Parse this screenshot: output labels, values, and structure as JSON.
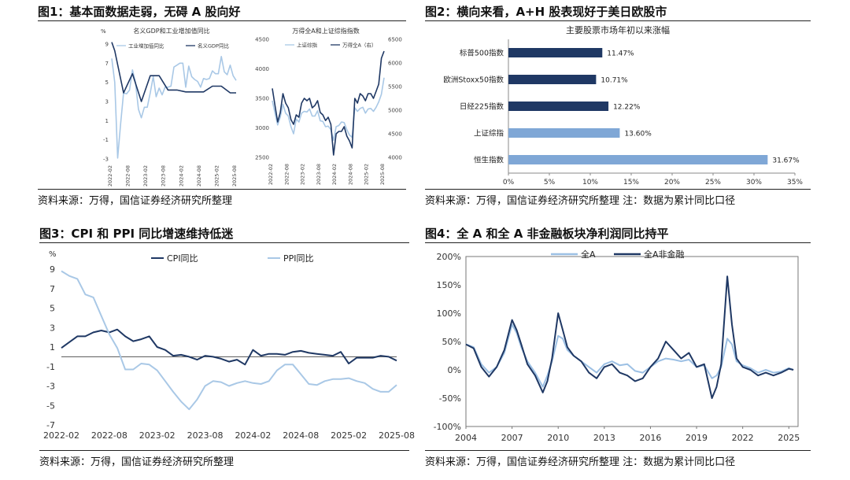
{
  "figures": [
    {
      "title": "图1：基本面数据走弱，无碍 A 股向好",
      "source": "资料来源：万得，国信证券经济研究所整理"
    },
    {
      "title": "图2：横向来看，A+H 股表现好于美日欧股市",
      "source": "资料来源：万得，国信证券经济研究所整理  注：数据为累计同比口径"
    },
    {
      "title": "图3：CPI 和 PPI 同比增速维持低迷",
      "source": "资料来源：万得，国信证券经济研究所整理"
    },
    {
      "title": "图4：全 A 和全 A 非金融板块净利润同比持平",
      "source": "资料来源：万得，国信证券经济研究所整理  注：数据为累计同比口径"
    }
  ],
  "chart_data": [
    {
      "id": "fig1a",
      "type": "line",
      "title": "名义GDP和工业增加值同比",
      "ylabel": "%",
      "ylim": [
        -3,
        9
      ],
      "yticks": [
        -3,
        -1,
        1,
        3,
        5,
        7,
        9
      ],
      "xlim": [
        "2022-02",
        "2025-08"
      ],
      "xticks": [
        "2022-02",
        "2022-08",
        "2023-02",
        "2023-08",
        "2024-02",
        "2024-08",
        "2025-02",
        "2025-08"
      ],
      "series": [
        {
          "name": "工业增加值同比",
          "color": "#a9c8e6",
          "x": [
            "2022-02",
            "2022-03",
            "2022-04",
            "2022-05",
            "2022-06",
            "2022-07",
            "2022-08",
            "2022-09",
            "2022-10",
            "2022-11",
            "2022-12",
            "2023-01",
            "2023-02",
            "2023-03",
            "2023-04",
            "2023-05",
            "2023-06",
            "2023-07",
            "2023-08",
            "2023-09",
            "2023-10",
            "2023-11",
            "2023-12",
            "2024-01",
            "2024-02",
            "2024-03",
            "2024-04",
            "2024-05",
            "2024-06",
            "2024-07",
            "2024-08",
            "2024-09",
            "2024-10",
            "2024-11",
            "2024-12",
            "2025-01",
            "2025-02",
            "2025-03",
            "2025-04",
            "2025-05",
            "2025-06",
            "2025-07",
            "2025-08"
          ],
          "values": [
            7.5,
            5.0,
            -2.9,
            0.7,
            3.9,
            3.8,
            4.2,
            6.3,
            5.0,
            2.2,
            1.3,
            2.4,
            2.4,
            3.9,
            5.6,
            3.5,
            4.4,
            3.7,
            4.5,
            4.5,
            4.6,
            6.6,
            6.8,
            7.0,
            7.0,
            4.5,
            6.7,
            5.6,
            5.3,
            5.1,
            4.5,
            5.4,
            5.3,
            5.4,
            6.2,
            5.9,
            5.9,
            7.7,
            6.1,
            5.8,
            6.8,
            5.7,
            5.2
          ]
        },
        {
          "name": "名义GDP同比",
          "color": "#1f3864",
          "x": [
            "2022-02",
            "2022-03",
            "2022-06",
            "2022-09",
            "2022-12",
            "2023-03",
            "2023-06",
            "2023-09",
            "2023-12",
            "2024-03",
            "2024-06",
            "2024-09",
            "2024-12",
            "2025-03",
            "2025-06",
            "2025-08"
          ],
          "values": [
            9.2,
            8.3,
            3.9,
            5.9,
            3.0,
            5.7,
            5.7,
            4.2,
            4.2,
            4.0,
            4.0,
            4.0,
            4.6,
            4.6,
            3.9,
            3.9
          ]
        }
      ]
    },
    {
      "id": "fig1b",
      "type": "line",
      "title": "万得全A和上证综指指数",
      "ylim_left": [
        2500,
        4500
      ],
      "yticks_left": [
        2500,
        3000,
        3500,
        4000,
        4500
      ],
      "ylim_right": [
        4000,
        6500
      ],
      "yticks_right": [
        4000,
        4500,
        5000,
        5500,
        6000,
        6500
      ],
      "xlim": [
        "2022-02",
        "2025-08"
      ],
      "xticks": [
        "2022-02",
        "2022-08",
        "2023-02",
        "2023-08",
        "2024-02",
        "2024-08",
        "2025-02",
        "2025-08"
      ],
      "series": [
        {
          "name": "上证综指",
          "color": "#a9c8e6",
          "axis": "left",
          "x": [
            "2022-02",
            "2022-03",
            "2022-04",
            "2022-05",
            "2022-06",
            "2022-07",
            "2022-08",
            "2022-09",
            "2022-10",
            "2022-11",
            "2022-12",
            "2023-01",
            "2023-02",
            "2023-03",
            "2023-04",
            "2023-05",
            "2023-06",
            "2023-07",
            "2023-08",
            "2023-09",
            "2023-10",
            "2023-11",
            "2023-12",
            "2024-01",
            "2024-02",
            "2024-03",
            "2024-04",
            "2024-05",
            "2024-06",
            "2024-07",
            "2024-08",
            "2024-09",
            "2024-10",
            "2024-11",
            "2024-12",
            "2025-01",
            "2025-02",
            "2025-03",
            "2025-04",
            "2025-05",
            "2025-06",
            "2025-07",
            "2025-08"
          ],
          "values": [
            3460,
            3250,
            3050,
            3180,
            3400,
            3250,
            3200,
            3020,
            2900,
            3150,
            3100,
            3250,
            3280,
            3270,
            3320,
            3200,
            3200,
            3290,
            3120,
            3110,
            3020,
            3030,
            2970,
            2790,
            3020,
            3040,
            3100,
            3090,
            2970,
            2880,
            2840,
            3340,
            3280,
            3330,
            3350,
            3250,
            3320,
            3330,
            3280,
            3350,
            3440,
            3570,
            3850
          ]
        },
        {
          "name": "万得全A（右）",
          "color": "#1f3864",
          "axis": "right",
          "x": [
            "2022-02",
            "2022-03",
            "2022-04",
            "2022-05",
            "2022-06",
            "2022-07",
            "2022-08",
            "2022-09",
            "2022-10",
            "2022-11",
            "2022-12",
            "2023-01",
            "2023-02",
            "2023-03",
            "2023-04",
            "2023-05",
            "2023-06",
            "2023-07",
            "2023-08",
            "2023-09",
            "2023-10",
            "2023-11",
            "2023-12",
            "2024-01",
            "2024-02",
            "2024-03",
            "2024-04",
            "2024-05",
            "2024-06",
            "2024-07",
            "2024-08",
            "2024-09",
            "2024-10",
            "2024-11",
            "2024-12",
            "2025-01",
            "2025-02",
            "2025-03",
            "2025-04",
            "2025-05",
            "2025-06",
            "2025-07",
            "2025-08"
          ],
          "values": [
            5460,
            5100,
            4750,
            4950,
            5350,
            5150,
            5050,
            4800,
            4700,
            4900,
            4850,
            5150,
            5250,
            5200,
            5250,
            5050,
            5100,
            5200,
            4950,
            4900,
            4780,
            4850,
            4700,
            4050,
            4500,
            4550,
            4550,
            4650,
            4450,
            4350,
            4200,
            5250,
            5150,
            5350,
            5300,
            5200,
            5350,
            5350,
            5250,
            5400,
            5550,
            6100,
            6250
          ]
        }
      ]
    },
    {
      "id": "fig2",
      "type": "bar",
      "orientation": "horizontal",
      "title": "主要股票市场年初以来涨幅",
      "categories": [
        "标普500指数",
        "欧洲Stoxx50指数",
        "日经225指数",
        "上证综指",
        "恒生指数"
      ],
      "values": [
        11.47,
        10.71,
        12.22,
        13.6,
        31.67
      ],
      "data_labels": [
        "11.47%",
        "10.71%",
        "12.22%",
        "13.60%",
        "31.67%"
      ],
      "colors": [
        "#1f3864",
        "#1f3864",
        "#1f3864",
        "#7fa7d6",
        "#7fa7d6"
      ],
      "xlim": [
        0,
        35
      ],
      "xticks": [
        "0%",
        "5%",
        "10%",
        "15%",
        "20%",
        "25%",
        "30%",
        "35%"
      ]
    },
    {
      "id": "fig3",
      "type": "line",
      "ylabel": "%",
      "ylim": [
        -7,
        9
      ],
      "yticks": [
        -7,
        -5,
        -3,
        -1,
        1,
        3,
        5,
        7,
        9
      ],
      "xlim": [
        "2022-02",
        "2025-08"
      ],
      "xticks": [
        "2022-02",
        "2022-08",
        "2023-02",
        "2023-08",
        "2024-02",
        "2024-08",
        "2025-02",
        "2025-08"
      ],
      "legend": "top-center",
      "series": [
        {
          "name": "CPI同比",
          "color": "#1f3864",
          "x": [
            "2022-02",
            "2022-03",
            "2022-04",
            "2022-05",
            "2022-06",
            "2022-07",
            "2022-08",
            "2022-09",
            "2022-10",
            "2022-11",
            "2022-12",
            "2023-01",
            "2023-02",
            "2023-03",
            "2023-04",
            "2023-05",
            "2023-06",
            "2023-07",
            "2023-08",
            "2023-09",
            "2023-10",
            "2023-11",
            "2023-12",
            "2024-01",
            "2024-02",
            "2024-03",
            "2024-04",
            "2024-05",
            "2024-06",
            "2024-07",
            "2024-08",
            "2024-09",
            "2024-10",
            "2024-11",
            "2024-12",
            "2025-01",
            "2025-02",
            "2025-03",
            "2025-04",
            "2025-05",
            "2025-06",
            "2025-07",
            "2025-08"
          ],
          "values": [
            0.9,
            1.5,
            2.1,
            2.1,
            2.5,
            2.7,
            2.5,
            2.8,
            2.1,
            1.6,
            1.8,
            2.1,
            1.0,
            0.7,
            0.1,
            0.2,
            0.0,
            -0.3,
            0.1,
            0.0,
            -0.2,
            -0.5,
            -0.3,
            -0.8,
            0.7,
            0.1,
            0.3,
            0.3,
            0.2,
            0.5,
            0.6,
            0.4,
            0.3,
            0.2,
            0.1,
            0.5,
            -0.7,
            -0.1,
            -0.1,
            -0.1,
            0.1,
            0.0,
            -0.4
          ]
        },
        {
          "name": "PPI同比",
          "color": "#a9c8e6",
          "x": [
            "2022-02",
            "2022-03",
            "2022-04",
            "2022-05",
            "2022-06",
            "2022-07",
            "2022-08",
            "2022-09",
            "2022-10",
            "2022-11",
            "2022-12",
            "2023-01",
            "2023-02",
            "2023-03",
            "2023-04",
            "2023-05",
            "2023-06",
            "2023-07",
            "2023-08",
            "2023-09",
            "2023-10",
            "2023-11",
            "2023-12",
            "2024-01",
            "2024-02",
            "2024-03",
            "2024-04",
            "2024-05",
            "2024-06",
            "2024-07",
            "2024-08",
            "2024-09",
            "2024-10",
            "2024-11",
            "2024-12",
            "2025-01",
            "2025-02",
            "2025-03",
            "2025-04",
            "2025-05",
            "2025-06",
            "2025-07",
            "2025-08"
          ],
          "values": [
            8.8,
            8.3,
            8.0,
            6.4,
            6.1,
            4.2,
            2.3,
            0.9,
            -1.3,
            -1.3,
            -0.7,
            -0.8,
            -1.4,
            -2.5,
            -3.6,
            -4.6,
            -5.4,
            -4.4,
            -3.0,
            -2.5,
            -2.6,
            -3.0,
            -2.7,
            -2.5,
            -2.7,
            -2.8,
            -2.5,
            -1.4,
            -0.8,
            -0.8,
            -1.8,
            -2.8,
            -2.9,
            -2.5,
            -2.3,
            -2.3,
            -2.2,
            -2.5,
            -2.7,
            -3.3,
            -3.6,
            -3.6,
            -2.9
          ]
        }
      ]
    },
    {
      "id": "fig4",
      "type": "line",
      "ylim": [
        -100,
        200
      ],
      "yticks": [
        "-100%",
        "-50%",
        "0%",
        "50%",
        "100%",
        "150%",
        "200%"
      ],
      "xlim": [
        2004,
        2025.6
      ],
      "xticks": [
        "2004",
        "2007",
        "2010",
        "2013",
        "2016",
        "2019",
        "2022",
        "2025"
      ],
      "legend": "top-left",
      "series": [
        {
          "name": "全A",
          "color": "#9cc0e4",
          "x": [
            2004,
            2004.5,
            2005,
            2005.5,
            2006,
            2006.5,
            2007,
            2007.3,
            2007.6,
            2008,
            2008.5,
            2009,
            2009.3,
            2009.6,
            2010,
            2010.3,
            2010.6,
            2011,
            2011.5,
            2012,
            2012.5,
            2013,
            2013.5,
            2014,
            2014.5,
            2015,
            2015.5,
            2016,
            2016.5,
            2017,
            2017.5,
            2018,
            2018.5,
            2019,
            2019.5,
            2020,
            2020.3,
            2020.6,
            2021,
            2021.3,
            2021.6,
            2022,
            2022.5,
            2023,
            2023.5,
            2024,
            2024.5,
            2025,
            2025.3
          ],
          "values": [
            45,
            40,
            10,
            -5,
            5,
            30,
            80,
            65,
            40,
            15,
            -5,
            -30,
            -10,
            15,
            60,
            55,
            35,
            25,
            15,
            5,
            -5,
            10,
            15,
            8,
            10,
            -2,
            -5,
            5,
            15,
            20,
            18,
            15,
            18,
            5,
            8,
            -15,
            -10,
            5,
            55,
            45,
            15,
            8,
            3,
            -5,
            0,
            -5,
            -3,
            3,
            0
          ]
        },
        {
          "name": "全A非金融",
          "color": "#1f3864",
          "x": [
            2004,
            2004.5,
            2005,
            2005.5,
            2006,
            2006.5,
            2007,
            2007.3,
            2007.6,
            2008,
            2008.5,
            2009,
            2009.3,
            2009.6,
            2010,
            2010.3,
            2010.6,
            2011,
            2011.5,
            2012,
            2012.5,
            2013,
            2013.5,
            2014,
            2014.5,
            2015,
            2015.5,
            2016,
            2016.5,
            2017,
            2017.5,
            2018,
            2018.5,
            2019,
            2019.5,
            2020,
            2020.3,
            2020.6,
            2021,
            2021.3,
            2021.6,
            2022,
            2022.5,
            2023,
            2023.5,
            2024,
            2024.5,
            2025,
            2025.3
          ],
          "values": [
            45,
            38,
            5,
            -12,
            5,
            35,
            88,
            70,
            45,
            10,
            -10,
            -40,
            -20,
            20,
            100,
            70,
            40,
            25,
            15,
            -5,
            -15,
            5,
            10,
            -5,
            -10,
            -20,
            -15,
            5,
            20,
            50,
            35,
            20,
            30,
            5,
            10,
            -50,
            -30,
            10,
            165,
            80,
            20,
            5,
            0,
            -10,
            -5,
            -10,
            -5,
            2,
            0
          ]
        }
      ]
    }
  ]
}
